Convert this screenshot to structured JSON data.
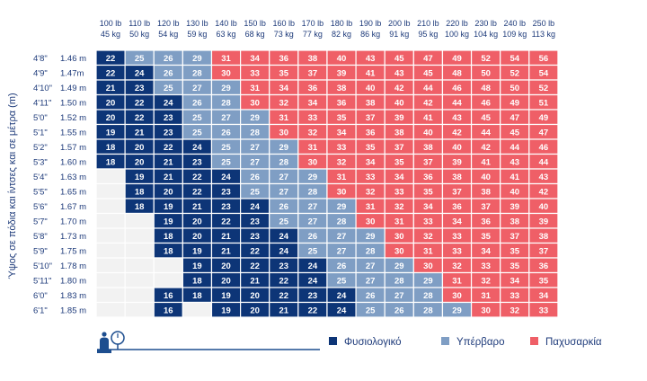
{
  "chart_data": {
    "type": "table",
    "title": "",
    "ylabel": "Ύψος σε πόδια και ίντσες και σε μέτρα (m)",
    "columns": [
      {
        "lb": "100 lb",
        "kg": "45 kg"
      },
      {
        "lb": "110 lb",
        "kg": "50 kg"
      },
      {
        "lb": "120 lb",
        "kg": "54 kg"
      },
      {
        "lb": "130 lb",
        "kg": "59 kg"
      },
      {
        "lb": "140 lb",
        "kg": "63 kg"
      },
      {
        "lb": "150 lb",
        "kg": "68 kg"
      },
      {
        "lb": "160 lb",
        "kg": "73 kg"
      },
      {
        "lb": "170 lb",
        "kg": "77 kg"
      },
      {
        "lb": "180 lb",
        "kg": "82 kg"
      },
      {
        "lb": "190 lb",
        "kg": "86 kg"
      },
      {
        "lb": "200 lb",
        "kg": "91 kg"
      },
      {
        "lb": "210 lb",
        "kg": "95 kg"
      },
      {
        "lb": "220 lb",
        "kg": "100 kg"
      },
      {
        "lb": "230 lb",
        "kg": "104 kg"
      },
      {
        "lb": "240 lb",
        "kg": "109 kg"
      },
      {
        "lb": "250 lb",
        "kg": "113 kg"
      }
    ],
    "rows": [
      {
        "ft": "4'8\"",
        "m": "1.46 m",
        "values": [
          22,
          25,
          26,
          29,
          31,
          34,
          36,
          38,
          40,
          43,
          45,
          47,
          49,
          52,
          54,
          56
        ]
      },
      {
        "ft": "4'9\"",
        "m": "1.47m",
        "values": [
          22,
          24,
          26,
          28,
          30,
          33,
          35,
          37,
          39,
          41,
          43,
          45,
          48,
          50,
          52,
          54
        ]
      },
      {
        "ft": "4'10\"",
        "m": "1.49 m",
        "values": [
          21,
          23,
          25,
          27,
          29,
          31,
          34,
          36,
          38,
          40,
          42,
          44,
          46,
          48,
          50,
          52
        ]
      },
      {
        "ft": "4'11\"",
        "m": "1.50 m",
        "values": [
          20,
          22,
          24,
          26,
          28,
          30,
          32,
          34,
          36,
          38,
          40,
          42,
          44,
          46,
          49,
          51
        ]
      },
      {
        "ft": "5'0\"",
        "m": "1.52 m",
        "values": [
          20,
          22,
          23,
          25,
          27,
          29,
          31,
          33,
          35,
          37,
          39,
          41,
          43,
          45,
          47,
          49
        ]
      },
      {
        "ft": "5'1\"",
        "m": "1.55 m",
        "values": [
          19,
          21,
          23,
          25,
          26,
          28,
          30,
          32,
          34,
          36,
          38,
          40,
          42,
          44,
          45,
          47
        ]
      },
      {
        "ft": "5'2\"",
        "m": "1.57 m",
        "values": [
          18,
          20,
          22,
          24,
          25,
          27,
          29,
          31,
          33,
          35,
          37,
          38,
          40,
          42,
          44,
          46
        ]
      },
      {
        "ft": "5'3\"",
        "m": "1.60 m",
        "values": [
          18,
          20,
          21,
          23,
          25,
          27,
          28,
          30,
          32,
          34,
          35,
          37,
          39,
          41,
          43,
          44
        ]
      },
      {
        "ft": "5'4\"",
        "m": "1.63 m",
        "values": [
          null,
          19,
          21,
          22,
          24,
          26,
          27,
          29,
          31,
          33,
          34,
          36,
          38,
          40,
          41,
          43
        ]
      },
      {
        "ft": "5'5\"",
        "m": "1.65 m",
        "values": [
          null,
          18,
          20,
          22,
          23,
          25,
          27,
          28,
          30,
          32,
          33,
          35,
          37,
          38,
          40,
          42
        ]
      },
      {
        "ft": "5'6\"",
        "m": "1.67 m",
        "values": [
          null,
          18,
          19,
          21,
          23,
          24,
          26,
          27,
          29,
          31,
          32,
          34,
          36,
          37,
          39,
          40
        ]
      },
      {
        "ft": "5'7\"",
        "m": "1.70 m",
        "values": [
          null,
          null,
          19,
          20,
          22,
          23,
          25,
          27,
          28,
          30,
          31,
          33,
          34,
          36,
          38,
          39
        ]
      },
      {
        "ft": "5'8\"",
        "m": "1.73 m",
        "values": [
          null,
          null,
          18,
          20,
          21,
          23,
          24,
          26,
          27,
          29,
          30,
          32,
          33,
          35,
          37,
          38
        ]
      },
      {
        "ft": "5'9\"",
        "m": "1.75 m",
        "values": [
          null,
          null,
          18,
          19,
          21,
          22,
          24,
          25,
          27,
          28,
          30,
          31,
          33,
          34,
          35,
          37
        ]
      },
      {
        "ft": "5'10\"",
        "m": "1.78 m",
        "values": [
          null,
          null,
          null,
          19,
          20,
          22,
          23,
          24,
          26,
          27,
          29,
          30,
          32,
          33,
          35,
          36
        ]
      },
      {
        "ft": "5'11\"",
        "m": "1.80 m",
        "values": [
          null,
          null,
          null,
          18,
          20,
          21,
          22,
          24,
          25,
          27,
          28,
          29,
          31,
          32,
          34,
          35
        ]
      },
      {
        "ft": "6'0\"",
        "m": "1.83 m",
        "values": [
          null,
          null,
          16,
          18,
          19,
          20,
          22,
          23,
          24,
          26,
          27,
          28,
          30,
          31,
          33,
          34
        ]
      },
      {
        "ft": "6'1\"",
        "m": "1.85 m",
        "values": [
          null,
          null,
          16,
          null,
          19,
          20,
          21,
          22,
          24,
          25,
          26,
          28,
          29,
          30,
          32,
          33
        ]
      }
    ],
    "categories": [
      {
        "key": "normal",
        "name": "Φυσιολογικό",
        "color": "#0d3577",
        "min": 0,
        "max": 24
      },
      {
        "key": "overweight",
        "name": "Υπέρβαρο",
        "color": "#7f9ec4",
        "min": 25,
        "max": 29
      },
      {
        "key": "obese",
        "name": "Παχυσαρκία",
        "color": "#ef5f67",
        "min": 30,
        "max": 99
      }
    ],
    "empty_color": "#f2f2f2",
    "grid_color": "#ffffff"
  }
}
